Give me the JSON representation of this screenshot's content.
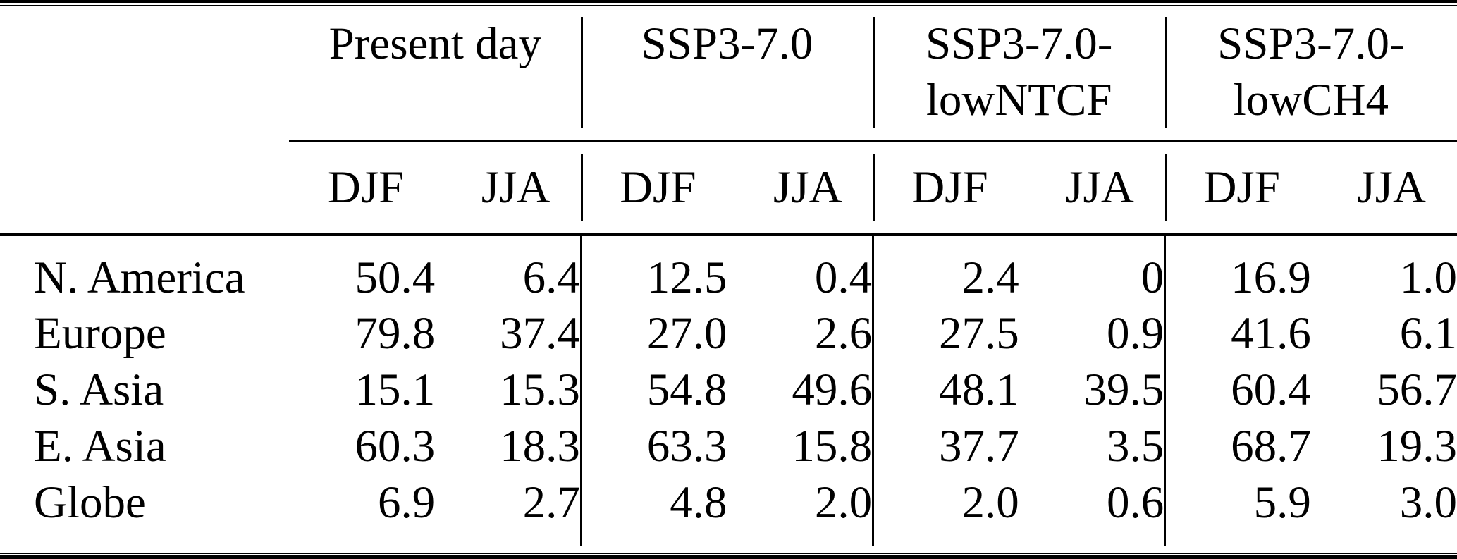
{
  "page": {
    "background": "#ffffff",
    "text_color": "#000000",
    "rule_color": "#000000"
  },
  "table": {
    "corner_top": "",
    "corner_seasons": "",
    "column_groups": [
      {
        "line1": "Present day",
        "line2": ""
      },
      {
        "line1": "SSP3-7.0",
        "line2": ""
      },
      {
        "line1": "SSP3-7.0-",
        "line2": "lowNTCF"
      },
      {
        "line1": "SSP3-7.0-",
        "line2": "lowCH4"
      }
    ],
    "season_headers": [
      "DJF",
      "JJA",
      "DJF",
      "JJA",
      "DJF",
      "JJA",
      "DJF",
      "JJA"
    ],
    "rows": [
      {
        "label": "N. America",
        "values": [
          "50.4",
          "6.4",
          "12.5",
          "0.4",
          "2.4",
          "0",
          "16.9",
          "1.0"
        ]
      },
      {
        "label": "Europe",
        "values": [
          "79.8",
          "37.4",
          "27.0",
          "2.6",
          "27.5",
          "0.9",
          "41.6",
          "6.1"
        ]
      },
      {
        "label": "S. Asia",
        "values": [
          "15.1",
          "15.3",
          "54.8",
          "49.6",
          "48.1",
          "39.5",
          "60.4",
          "56.7"
        ]
      },
      {
        "label": "E. Asia",
        "values": [
          "60.3",
          "18.3",
          "63.3",
          "15.8",
          "37.7",
          "3.5",
          "68.7",
          "19.3"
        ]
      },
      {
        "label": "Globe",
        "values": [
          "6.9",
          "2.7",
          "4.8",
          "2.0",
          "2.0",
          "0.6",
          "5.9",
          "3.0"
        ]
      }
    ]
  }
}
